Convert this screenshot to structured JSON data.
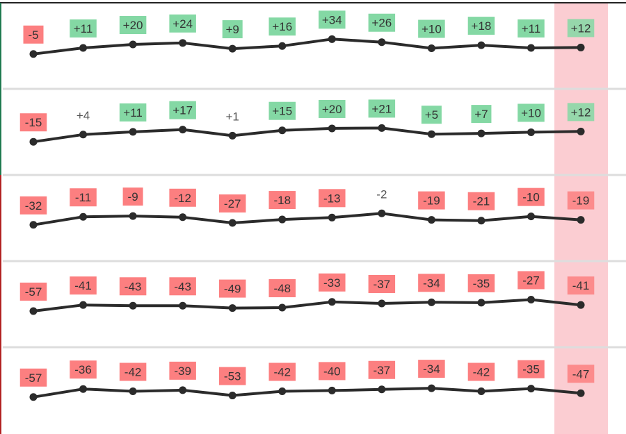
{
  "colors": {
    "positive": "#84D8A4",
    "negative": "#FC7F80",
    "neutral_text": "#555555",
    "line": "#2b2b2b",
    "highlight_band": "#FBCDD2",
    "row_divider": "#dddddd",
    "left_accent_top": "#1f7a50",
    "left_accent_bottom": "#b22222",
    "top_border": "#222222"
  },
  "chart_data": {
    "type": "line",
    "title": "",
    "xlabel": "",
    "ylabel": "",
    "grid": false,
    "legend": "none",
    "x": [
      1,
      2,
      3,
      4,
      5,
      6,
      7,
      8,
      9,
      10,
      11,
      12
    ],
    "highlight_index": 11,
    "series": [
      {
        "values": [
          -5,
          11,
          20,
          24,
          9,
          16,
          34,
          26,
          10,
          18,
          11,
          12
        ],
        "labels": [
          "-5",
          "+11",
          "+20",
          "+24",
          "+9",
          "+16",
          "+34",
          "+26",
          "+10",
          "+18",
          "+11",
          "+12"
        ]
      },
      {
        "values": [
          -15,
          4,
          11,
          17,
          1,
          15,
          20,
          21,
          5,
          7,
          10,
          12
        ],
        "labels": [
          "-15",
          "+4",
          "+11",
          "+17",
          "+1",
          "+15",
          "+20",
          "+21",
          "+5",
          "+7",
          "+10",
          "+12"
        ]
      },
      {
        "values": [
          -32,
          -11,
          -9,
          -12,
          -27,
          -18,
          -13,
          -2,
          -19,
          -21,
          -10,
          -19
        ],
        "labels": [
          "-32",
          "-11",
          "-9",
          "-12",
          "-27",
          "-18",
          "-13",
          "-2",
          "-19",
          "-21",
          "-10",
          "-19"
        ]
      },
      {
        "values": [
          -57,
          -41,
          -43,
          -43,
          -49,
          -48,
          -33,
          -37,
          -34,
          -35,
          -27,
          -41
        ],
        "labels": [
          "-57",
          "-41",
          "-43",
          "-43",
          "-49",
          "-48",
          "-33",
          "-37",
          "-34",
          "-35",
          "-27",
          "-41"
        ]
      },
      {
        "values": [
          -57,
          -36,
          -42,
          -39,
          -53,
          -42,
          -40,
          -37,
          -34,
          -42,
          -35,
          -47
        ],
        "labels": [
          "-57",
          "-36",
          "-42",
          "-39",
          "-53",
          "-42",
          "-40",
          "-37",
          "-34",
          "-42",
          "-35",
          "-47"
        ]
      }
    ]
  }
}
